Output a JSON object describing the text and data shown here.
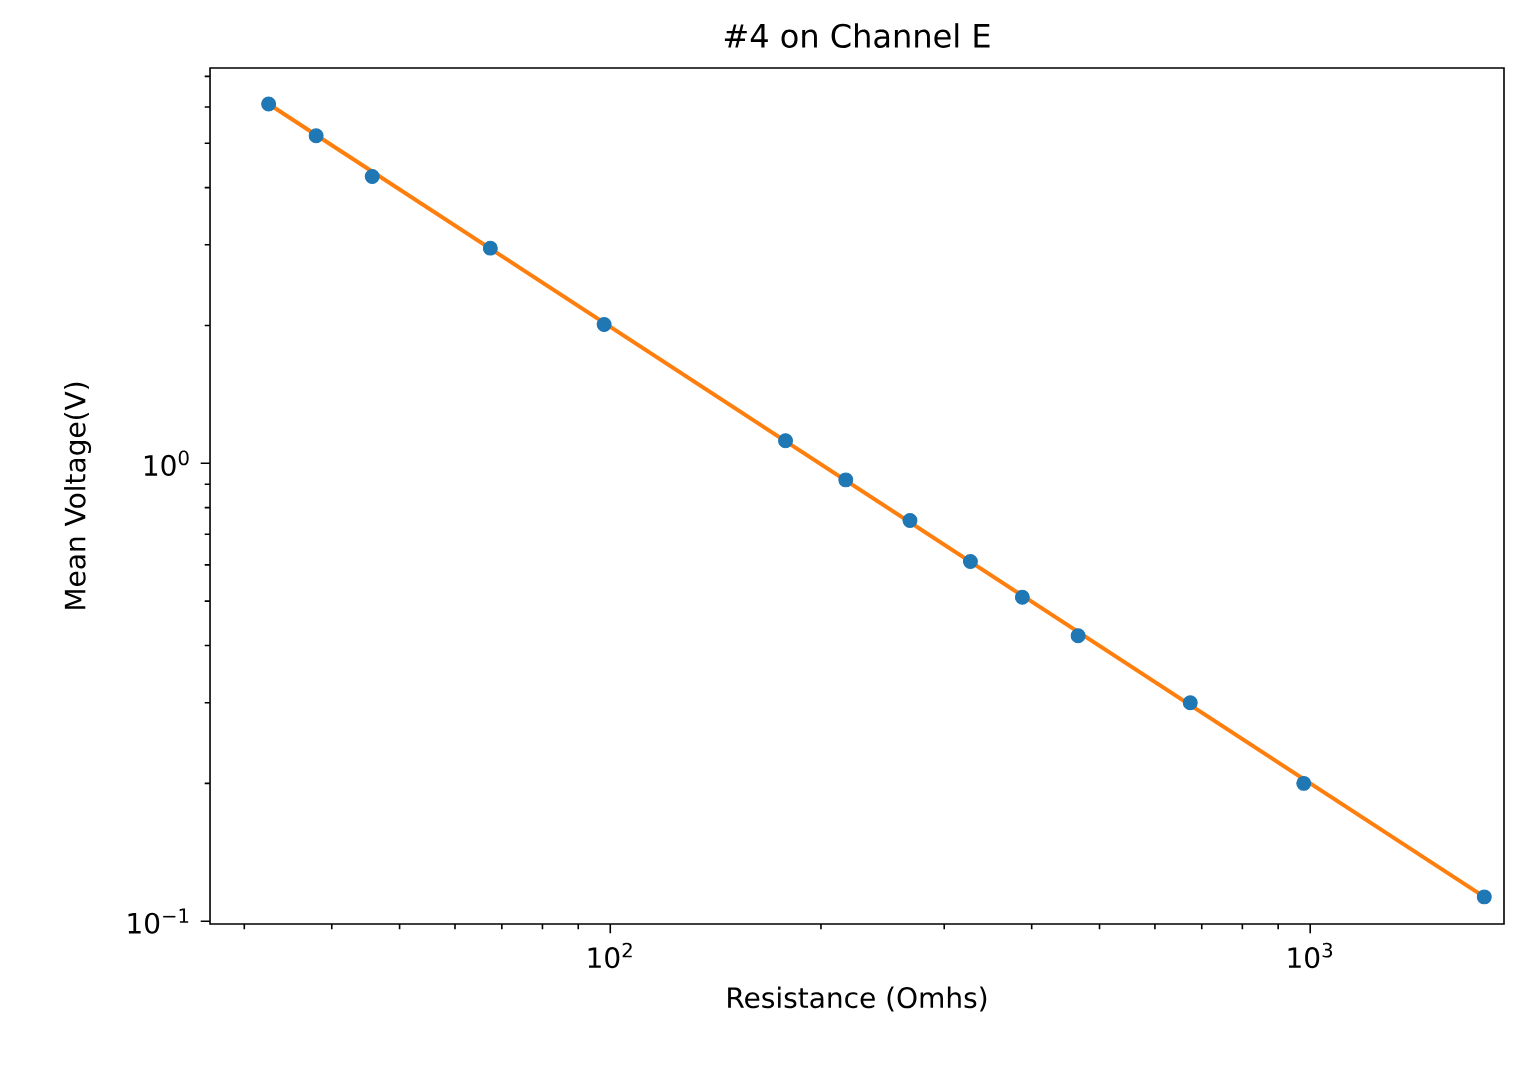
{
  "chart_data": {
    "type": "scatter",
    "title": "#4 on Channel E",
    "xlabel": "Resistance (Omhs)",
    "ylabel": "Mean Voltage(V)",
    "log": "xy",
    "marker": "circle",
    "xlim": [
      26.8,
      1892
    ],
    "ylim": [
      0.0986,
      7.3
    ],
    "xticks": [
      {
        "value": 100,
        "label": "10$^{2}$"
      },
      {
        "value": 1000,
        "label": "10$^{3}$"
      }
    ],
    "yticks": [
      {
        "value": 0.1,
        "label": "10$^{−1}$"
      },
      {
        "value": 1,
        "label": "10$^{0}$"
      }
    ],
    "series": [
      {
        "color": "#1f77b4",
        "x": [
          32.5,
          38.0,
          45.7,
          67.4,
          98,
          178,
          217,
          268,
          327,
          388,
          466,
          674,
          979,
          1773
        ],
        "values": [
          6.09,
          5.19,
          4.23,
          2.95,
          2.01,
          1.12,
          0.92,
          0.75,
          0.61,
          0.51,
          0.42,
          0.3,
          0.2,
          0.113
        ]
      },
      {
        "type": "line",
        "color": "#ff7f0e",
        "marker": "none",
        "line_style": "solid",
        "x": [
          32.5,
          1773
        ],
        "values": [
          6.09,
          0.113
        ]
      }
    ]
  }
}
